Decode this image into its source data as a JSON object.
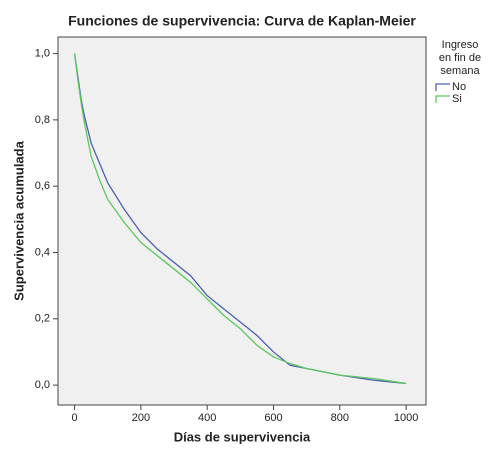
{
  "chart_data": {
    "type": "line",
    "title": "Funciones de supervivencia: Curva de Kaplan-Meier",
    "x_label": "Días de supervivencia",
    "y_label": "Supervivencia acumulada",
    "legend_title": [
      "Ingreso",
      "en fin de",
      "semana"
    ],
    "legend_position": "right",
    "xlim": [
      -50,
      1060
    ],
    "ylim": [
      -0.06,
      1.05
    ],
    "xticks": [
      0,
      200,
      400,
      600,
      800,
      1000
    ],
    "yticks": [
      {
        "value": 0,
        "label": "0,0"
      },
      {
        "value": 0.2,
        "label": "0,2"
      },
      {
        "value": 0.4,
        "label": "0,4"
      },
      {
        "value": 0.6,
        "label": "0,6"
      },
      {
        "value": 0.8,
        "label": "0,8"
      },
      {
        "value": 1,
        "label": "1,0"
      }
    ],
    "series": [
      {
        "name": "No",
        "color": "#4d5fb0",
        "x": [
          0,
          10,
          20,
          30,
          40,
          50,
          75,
          100,
          150,
          200,
          250,
          300,
          350,
          400,
          450,
          500,
          550,
          600,
          650,
          700,
          800,
          900,
          1000
        ],
        "values": [
          1,
          0.93,
          0.86,
          0.81,
          0.77,
          0.73,
          0.67,
          0.61,
          0.53,
          0.46,
          0.41,
          0.37,
          0.33,
          0.27,
          0.23,
          0.19,
          0.15,
          0.1,
          0.06,
          0.05,
          0.03,
          0.015,
          0.005
        ]
      },
      {
        "name": "Si",
        "color": "#5cc85c",
        "x": [
          0,
          10,
          20,
          30,
          40,
          50,
          75,
          100,
          150,
          200,
          250,
          300,
          350,
          400,
          450,
          500,
          550,
          600,
          650,
          700,
          800,
          900,
          1000
        ],
        "values": [
          1,
          0.92,
          0.85,
          0.79,
          0.74,
          0.69,
          0.62,
          0.56,
          0.49,
          0.43,
          0.39,
          0.35,
          0.31,
          0.26,
          0.21,
          0.17,
          0.12,
          0.085,
          0.065,
          0.05,
          0.03,
          0.02,
          0.005
        ]
      }
    ]
  }
}
